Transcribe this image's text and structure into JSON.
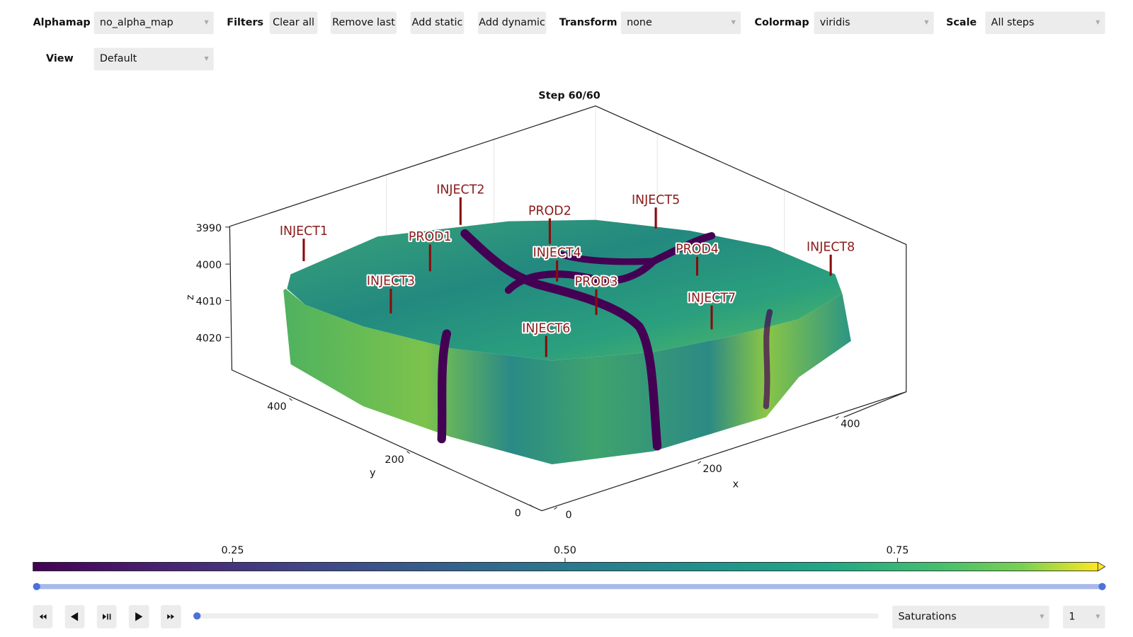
{
  "toolbar": {
    "alphamap": {
      "label": "Alphamap",
      "value": "no_alpha_map"
    },
    "filters": {
      "label": "Filters",
      "buttons": [
        "Clear all",
        "Remove last",
        "Add static",
        "Add dynamic"
      ]
    },
    "transform": {
      "label": "Transform",
      "value": "none"
    },
    "colormap": {
      "label": "Colormap",
      "value": "viridis"
    },
    "scale": {
      "label": "Scale",
      "value": "All steps"
    },
    "view": {
      "label": "View",
      "value": "Default"
    }
  },
  "plot": {
    "title": "Step 60/60",
    "axes": {
      "x": {
        "label": "x",
        "ticks": [
          0,
          200,
          400
        ]
      },
      "y": {
        "label": "y",
        "ticks": [
          0,
          200,
          400
        ]
      },
      "z": {
        "label": "z",
        "ticks": [
          3990,
          4000,
          4010,
          4020
        ]
      }
    },
    "wells": [
      "INJECT1",
      "INJECT2",
      "PROD2",
      "INJECT5",
      "PROD1",
      "INJECT4",
      "PROD4",
      "INJECT8",
      "INJECT3",
      "PROD3",
      "INJECT7",
      "INJECT6"
    ]
  },
  "colorbar": {
    "ticks": [
      0.25,
      {
        "value": 0.5,
        "label": "0.50"
      },
      {
        "value": 0.75,
        "label": "0.75"
      }
    ]
  },
  "controls": {
    "field": "Saturations",
    "step": 1
  }
}
